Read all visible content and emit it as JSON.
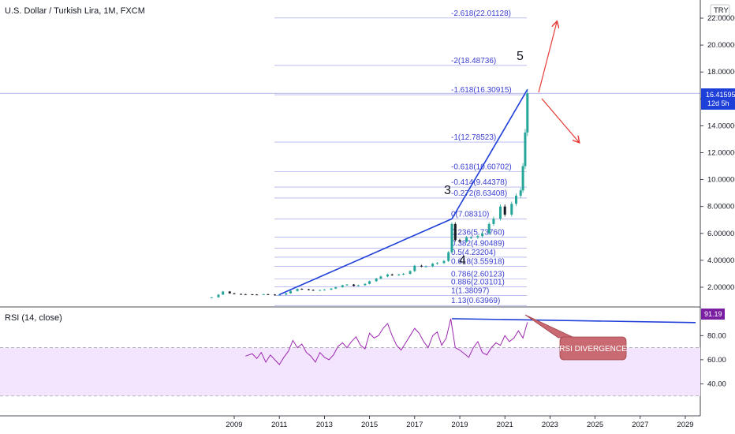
{
  "header": {
    "title": "U.S. Dollar / Turkish Lira, 1M, FXCM",
    "currency_badge": "TRY"
  },
  "price_tag": {
    "value": "16.41595",
    "countdown": "12d 5h"
  },
  "rsi": {
    "label": "RSI (14, close)",
    "value_tag": "91.19",
    "callout": "RSI DIVERGENCE",
    "upper_band": 70,
    "lower_band": 30
  },
  "waves": {
    "w3": "3",
    "w4": "4",
    "w5": "5"
  },
  "colors": {
    "candle_up": "#26a69a",
    "candle_down": "#131722",
    "fib": "#3a3fcf",
    "trendline": "#1e3fd8",
    "arrow": "#e53935",
    "rsi_line": "#9c27b0",
    "rsi_band": "#f3e5fd",
    "callout_fill": "#c96a72",
    "price_tag": "#1e3fd8",
    "rsi_tag": "#7b1fa2"
  },
  "chart_data": [
    {
      "type": "line",
      "name": "price",
      "x_ticks": [
        "2009",
        "2011",
        "2013",
        "2015",
        "2017",
        "2019",
        "2021",
        "2023",
        "2025",
        "2027",
        "2029"
      ],
      "y_ticks": [
        "22.00000",
        "20.00000",
        "18.00000",
        "16.00000",
        "14.00000",
        "12.00000",
        "10.00000",
        "8.00000",
        "6.00000",
        "4.00000",
        "2.00000"
      ],
      "ylim": [
        0.6,
        22.6
      ],
      "xlim": [
        2008.0,
        2030.4
      ],
      "x": [
        2008.0,
        2008.3,
        2008.5,
        2008.8,
        2009.0,
        2009.3,
        2009.5,
        2009.8,
        2010.0,
        2010.3,
        2010.5,
        2010.8,
        2011.0,
        2011.3,
        2011.5,
        2011.8,
        2012.0,
        2012.3,
        2012.5,
        2012.8,
        2013.0,
        2013.3,
        2013.5,
        2013.8,
        2014.0,
        2014.3,
        2014.5,
        2014.8,
        2015.0,
        2015.3,
        2015.5,
        2015.8,
        2016.0,
        2016.3,
        2016.5,
        2016.8,
        2017.0,
        2017.3,
        2017.5,
        2017.8,
        2018.0,
        2018.3,
        2018.5,
        2018.65,
        2018.8,
        2019.0,
        2019.3,
        2019.5,
        2019.8,
        2020.0,
        2020.3,
        2020.5,
        2020.8,
        2021.0,
        2021.3,
        2021.5,
        2021.7,
        2021.8,
        2021.9,
        2022.0
      ],
      "y": [
        1.25,
        1.45,
        1.68,
        1.55,
        1.5,
        1.48,
        1.47,
        1.46,
        1.45,
        1.48,
        1.46,
        1.42,
        1.45,
        1.55,
        1.72,
        1.88,
        1.85,
        1.8,
        1.78,
        1.79,
        1.82,
        1.9,
        2.0,
        2.15,
        2.2,
        2.1,
        2.15,
        2.25,
        2.45,
        2.65,
        2.8,
        2.95,
        2.9,
        2.95,
        3.0,
        3.2,
        3.6,
        3.55,
        3.55,
        3.75,
        3.8,
        3.95,
        4.6,
        6.7,
        5.5,
        5.4,
        5.7,
        5.7,
        5.8,
        6.0,
        6.7,
        7.1,
        8.0,
        7.4,
        8.2,
        8.8,
        9.2,
        11.0,
        13.5,
        16.41
      ]
    },
    {
      "type": "line",
      "name": "RSI (14, close)",
      "ylim": [
        30,
        100
      ],
      "y_ticks": [
        "80.00",
        "60.00",
        "40.00"
      ],
      "x": [
        2009.5,
        2009.8,
        2010.0,
        2010.2,
        2010.4,
        2010.6,
        2010.8,
        2011.0,
        2011.2,
        2011.4,
        2011.6,
        2011.8,
        2012.0,
        2012.2,
        2012.4,
        2012.6,
        2012.8,
        2013.0,
        2013.2,
        2013.4,
        2013.6,
        2013.8,
        2014.0,
        2014.2,
        2014.4,
        2014.6,
        2014.8,
        2015.0,
        2015.2,
        2015.4,
        2015.6,
        2015.8,
        2016.0,
        2016.2,
        2016.4,
        2016.6,
        2016.8,
        2017.0,
        2017.2,
        2017.4,
        2017.6,
        2017.8,
        2018.0,
        2018.2,
        2018.4,
        2018.6,
        2018.8,
        2019.0,
        2019.2,
        2019.4,
        2019.6,
        2019.8,
        2020.0,
        2020.2,
        2020.4,
        2020.6,
        2020.8,
        2021.0,
        2021.2,
        2021.4,
        2021.6,
        2021.8,
        2022.0
      ],
      "y": [
        63,
        65,
        61,
        66,
        58,
        64,
        60,
        56,
        62,
        67,
        76,
        70,
        73,
        66,
        63,
        58,
        66,
        62,
        60,
        64,
        71,
        74,
        70,
        75,
        79,
        72,
        69,
        82,
        78,
        80,
        86,
        90,
        80,
        72,
        68,
        74,
        80,
        86,
        82,
        75,
        70,
        80,
        83,
        72,
        78,
        94,
        70,
        68,
        65,
        62,
        70,
        75,
        66,
        64,
        70,
        74,
        72,
        80,
        75,
        78,
        84,
        78,
        91
      ]
    }
  ],
  "fib_labels": [
    "-2.618(22.01128)",
    "-2(18.48736)",
    "-1.618(16.30915)",
    "-1(12.78523)",
    "-0.618(10.60702)",
    "-0.414(9.44378)",
    "-0.272(8.63408)",
    "0(7.08310)",
    "0.236(5.73760)",
    "0.382(4.90489)",
    "0.5(4.23204)",
    "0.618(3.55918)",
    "0.786(2.60123)",
    "0.886(2.03101)",
    "1(1.38097)",
    "1.13(0.63969)"
  ]
}
